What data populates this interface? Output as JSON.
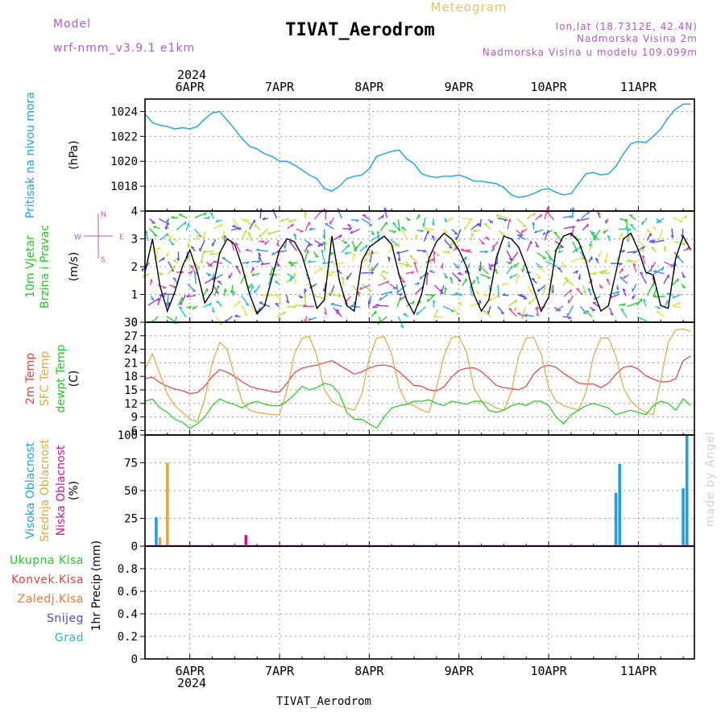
{
  "header": {
    "title": "TIVAT_Aerodrom",
    "meteogram": "Meteogram",
    "model_label": "Model",
    "model_name": "wrf-nmm_v3.9.1  e1km",
    "lonlat": "lon,lat (18.7312E, 42.4N)",
    "height": "Nadmorska Visina 2m",
    "model_height": "Nadmorska Visina u modelu 109.099m",
    "year": "2024",
    "footer": "TIVAT_Aerodrom",
    "credit": "made by Angel"
  },
  "colors": {
    "pressure": "#19a3e6",
    "temp2m": "#e64040",
    "sfc_temp": "#e0a840",
    "dewpoint": "#22cc22",
    "high_cloud": "#19a3e6",
    "mid_cloud": "#e0a840",
    "low_cloud": "#e0108c",
    "wind_speed": "#000000",
    "gust": "#e64040"
  },
  "chart_data": {
    "x_dates": [
      "6APR",
      "7APR",
      "8APR",
      "9APR",
      "10APR",
      "11APR"
    ],
    "x_hours": [
      0,
      24,
      48,
      72,
      96,
      120
    ],
    "x_range_hours": [
      -12,
      135
    ],
    "panels": [
      {
        "name": "pressure",
        "type": "line",
        "ylabel_lines": [
          "Pritisak na nivou mora"
        ],
        "unit": "(hPa)",
        "ylim": [
          1016,
          1025
        ],
        "yticks": [
          1018,
          1020,
          1022,
          1024
        ],
        "series": [
          {
            "key": "pressure",
            "x": [
              -12,
              -10,
              -8,
              -6,
              -4,
              -2,
              0,
              2,
              4,
              6,
              8,
              10,
              12,
              14,
              16,
              18,
              20,
              22,
              24,
              26,
              28,
              30,
              32,
              34,
              36,
              38,
              40,
              42,
              44,
              46,
              48,
              50,
              52,
              54,
              56,
              58,
              60,
              62,
              64,
              66,
              68,
              70,
              72,
              74,
              76,
              78,
              80,
              82,
              84,
              86,
              88,
              90,
              92,
              94,
              96,
              98,
              100,
              102,
              104,
              106,
              108,
              110,
              112,
              114,
              116,
              118,
              120,
              122,
              124,
              126,
              128,
              130,
              132,
              134
            ],
            "y": [
              1023.8,
              1023.1,
              1022.9,
              1022.8,
              1022.6,
              1022.7,
              1022.6,
              1022.8,
              1023.4,
              1023.9,
              1024.0,
              1023.3,
              1022.6,
              1021.8,
              1021.2,
              1021.0,
              1020.6,
              1020.4,
              1020.0,
              1020.0,
              1019.7,
              1019.3,
              1018.9,
              1018.6,
              1017.8,
              1017.6,
              1018.0,
              1018.6,
              1018.8,
              1018.9,
              1019.4,
              1020.4,
              1020.6,
              1020.8,
              1020.9,
              1020.2,
              1019.8,
              1019.0,
              1018.8,
              1018.7,
              1018.8,
              1018.8,
              1018.9,
              1018.7,
              1018.4,
              1018.4,
              1018.3,
              1018.2,
              1017.9,
              1017.3,
              1017.1,
              1017.2,
              1017.4,
              1017.7,
              1017.8,
              1017.5,
              1017.3,
              1017.4,
              1018.2,
              1019.0,
              1019.1,
              1018.9,
              1019.0,
              1019.6,
              1020.6,
              1021.4,
              1021.6,
              1021.5,
              1022.0,
              1022.6,
              1023.5,
              1024.2,
              1024.6,
              1024.6
            ]
          }
        ]
      },
      {
        "name": "wind",
        "type": "line",
        "ylabel_lines": [
          "10m Vjetar",
          "Brzina i Pravac"
        ],
        "unit": "(m/s)",
        "compass_label": [
          "W",
          "E",
          "N",
          "S"
        ],
        "ylim": [
          0,
          4
        ],
        "yticks": [
          0,
          1,
          2,
          3,
          4
        ],
        "series": [
          {
            "key": "wind_speed",
            "x": [
              -12,
              -10,
              -8,
              -6,
              -4,
              -2,
              0,
              2,
              4,
              6,
              8,
              10,
              12,
              14,
              16,
              18,
              20,
              22,
              24,
              26,
              28,
              30,
              32,
              34,
              36,
              38,
              40,
              42,
              44,
              46,
              48,
              50,
              52,
              54,
              56,
              58,
              60,
              62,
              64,
              66,
              68,
              70,
              72,
              74,
              76,
              78,
              80,
              82,
              84,
              86,
              88,
              90,
              92,
              94,
              96,
              98,
              100,
              102,
              104,
              106,
              108,
              110,
              112,
              114,
              116,
              118,
              120,
              122,
              124,
              126,
              128,
              130,
              132,
              134
            ],
            "y": [
              1.8,
              3.0,
              1.3,
              0.4,
              1.1,
              2.0,
              2.6,
              1.8,
              0.7,
              1.1,
              2.5,
              3.0,
              2.8,
              2.0,
              1.0,
              0.3,
              0.6,
              1.6,
              2.6,
              3.0,
              2.9,
              2.4,
              1.5,
              0.5,
              0.8,
              3.1,
              1.5,
              0.6,
              0.4,
              2.2,
              2.7,
              2.9,
              3.1,
              2.8,
              1.7,
              0.8,
              0.3,
              1.0,
              2.3,
              2.9,
              3.2,
              3.0,
              2.6,
              2.0,
              1.0,
              0.4,
              0.8,
              2.3,
              3.1,
              3.0,
              2.7,
              2.0,
              1.2,
              0.4,
              0.9,
              2.6,
              3.1,
              3.2,
              2.9,
              2.2,
              1.1,
              0.4,
              0.6,
              1.8,
              3.0,
              3.2,
              2.6,
              1.8,
              1.7,
              0.6,
              0.5,
              2.3,
              3.1,
              2.6
            ]
          }
        ]
      },
      {
        "name": "temperature",
        "type": "line",
        "ylabel_lines": [
          "2m Temp",
          "SFC Temp",
          "dewpt Temp"
        ],
        "unit": "(C)",
        "ylim": [
          5,
          30
        ],
        "yticks": [
          6,
          9,
          12,
          15,
          18,
          21,
          24,
          27,
          30
        ],
        "series": [
          {
            "key": "temp2m",
            "x": [
              -12,
              -10,
              -8,
              -6,
              -4,
              -2,
              0,
              2,
              4,
              6,
              8,
              10,
              12,
              14,
              16,
              18,
              20,
              22,
              24,
              26,
              28,
              30,
              32,
              34,
              36,
              38,
              40,
              42,
              44,
              46,
              48,
              50,
              52,
              54,
              56,
              58,
              60,
              62,
              64,
              66,
              68,
              70,
              72,
              74,
              76,
              78,
              80,
              82,
              84,
              86,
              88,
              90,
              92,
              94,
              96,
              98,
              100,
              102,
              104,
              106,
              108,
              110,
              112,
              114,
              116,
              118,
              120,
              122,
              124,
              126,
              128,
              130,
              132,
              134
            ],
            "y": [
              17.5,
              17.8,
              16.6,
              15.8,
              15.2,
              14.8,
              14.2,
              14.4,
              15.8,
              18.0,
              19.5,
              18.9,
              18.0,
              16.8,
              15.8,
              15.3,
              15.0,
              14.6,
              14.5,
              16.5,
              18.8,
              19.8,
              20.2,
              20.5,
              21.0,
              21.5,
              20.5,
              19.5,
              18.5,
              19.0,
              19.8,
              20.4,
              20.5,
              20.2,
              19.0,
              17.5,
              16.0,
              15.8,
              15.0,
              14.8,
              15.7,
              17.8,
              19.3,
              19.8,
              19.9,
              19.1,
              17.6,
              16.0,
              15.5,
              15.3,
              15.0,
              15.8,
              18.5,
              20.0,
              20.5,
              20.0,
              18.7,
              17.6,
              16.5,
              16.3,
              16.3,
              15.5,
              16.5,
              18.5,
              20.0,
              20.3,
              19.6,
              18.1,
              17.4,
              16.8,
              16.8,
              17.5,
              21.5,
              22.5
            ]
          },
          {
            "key": "sfc_temp",
            "x": [
              -12,
              -10,
              -8,
              -6,
              -4,
              -2,
              0,
              2,
              4,
              6,
              8,
              10,
              12,
              14,
              16,
              18,
              20,
              22,
              24,
              26,
              28,
              30,
              32,
              34,
              36,
              38,
              40,
              42,
              44,
              46,
              48,
              50,
              52,
              54,
              56,
              58,
              60,
              62,
              64,
              66,
              68,
              70,
              72,
              74,
              76,
              78,
              80,
              82,
              84,
              86,
              88,
              90,
              92,
              94,
              96,
              98,
              100,
              102,
              104,
              106,
              108,
              110,
              112,
              114,
              116,
              118,
              120,
              122,
              124,
              126,
              128,
              130,
              132,
              134
            ],
            "y": [
              19.5,
              23.0,
              18.5,
              14.0,
              11.5,
              10.0,
              8.5,
              8.0,
              13.0,
              21.0,
              25.5,
              24.0,
              18.0,
              12.5,
              10.5,
              10.0,
              9.8,
              9.5,
              9.5,
              15.0,
              23.0,
              26.5,
              26.8,
              22.5,
              15.0,
              12.5,
              11.5,
              11.0,
              10.5,
              14.0,
              22.0,
              26.5,
              26.8,
              23.0,
              15.5,
              12.0,
              11.5,
              10.5,
              10.0,
              15.5,
              22.5,
              26.5,
              26.9,
              23.5,
              15.5,
              12.5,
              12.0,
              11.0,
              10.5,
              14.5,
              22.5,
              26.5,
              26.6,
              23.0,
              15.5,
              12.5,
              11.5,
              11.0,
              10.5,
              14.5,
              22.5,
              26.5,
              26.5,
              22.5,
              15.5,
              12.5,
              11.0,
              10.0,
              9.5,
              17.0,
              25.5,
              28.3,
              28.5,
              28.0
            ]
          },
          {
            "key": "dewpoint",
            "x": [
              -12,
              -10,
              -8,
              -6,
              -4,
              -2,
              0,
              2,
              4,
              6,
              8,
              10,
              12,
              14,
              16,
              18,
              20,
              22,
              24,
              26,
              28,
              30,
              32,
              34,
              36,
              38,
              40,
              42,
              44,
              46,
              48,
              50,
              52,
              54,
              56,
              58,
              60,
              62,
              64,
              66,
              68,
              70,
              72,
              74,
              76,
              78,
              80,
              82,
              84,
              86,
              88,
              90,
              92,
              94,
              96,
              98,
              100,
              102,
              104,
              106,
              108,
              110,
              112,
              114,
              116,
              118,
              120,
              122,
              124,
              126,
              128,
              130,
              132,
              134
            ],
            "y": [
              12.5,
              13.0,
              11.0,
              10.0,
              8.5,
              7.8,
              6.5,
              7.5,
              9.0,
              11.5,
              13.0,
              12.2,
              11.8,
              11.0,
              12.0,
              12.5,
              11.8,
              11.5,
              11.5,
              12.5,
              14.0,
              15.8,
              15.0,
              15.5,
              16.5,
              16.0,
              14.2,
              10.0,
              8.5,
              8.5,
              7.5,
              6.5,
              9.0,
              11.0,
              11.5,
              11.8,
              12.5,
              12.5,
              12.8,
              12.0,
              11.5,
              12.5,
              12.2,
              11.8,
              12.5,
              12.5,
              10.5,
              10.0,
              10.5,
              11.5,
              12.0,
              11.5,
              12.5,
              12.5,
              11.5,
              9.0,
              7.5,
              9.5,
              10.5,
              11.5,
              12.0,
              11.5,
              11.0,
              9.5,
              10.0,
              10.5,
              10.0,
              9.5,
              11.5,
              12.5,
              12.0,
              10.5,
              13.0,
              11.5
            ]
          }
        ]
      },
      {
        "name": "cloud",
        "type": "bar",
        "ylabel_lines": [
          "Visoka Oblacnost",
          "Srednja Oblacnost",
          "Niska Oblacnost"
        ],
        "unit": "(%)",
        "ylim": [
          0,
          100
        ],
        "yticks": [
          0,
          25,
          50,
          75,
          100
        ],
        "series": [
          {
            "key": "high_cloud",
            "x": [
              -9,
              114,
              115,
              132,
              133
            ],
            "y": [
              26,
              48,
              74,
              52,
              100
            ]
          },
          {
            "key": "mid_cloud",
            "x": [
              -8,
              -6
            ],
            "y": [
              8,
              75
            ]
          },
          {
            "key": "low_cloud",
            "x": [
              15
            ],
            "y": [
              10
            ]
          }
        ]
      },
      {
        "name": "precip",
        "type": "bar",
        "ylabel_lines": [
          "1hr Precip"
        ],
        "unit": "(mm)",
        "ylim": [
          0,
          1.0
        ],
        "yticks": [
          0,
          0.2,
          0.4,
          0.6,
          0.8
        ],
        "legend": [
          {
            "label": "Ukupna Kisa",
            "color": "#22cc22"
          },
          {
            "label": "Konvek.Kisa",
            "color": "#e64040"
          },
          {
            "label": "Zaledj.Kisa",
            "color": "#f07830"
          },
          {
            "label": "Snijeg",
            "color": "#4848e0"
          },
          {
            "label": "Grad",
            "color": "#20c0c0"
          }
        ],
        "series": []
      }
    ]
  }
}
